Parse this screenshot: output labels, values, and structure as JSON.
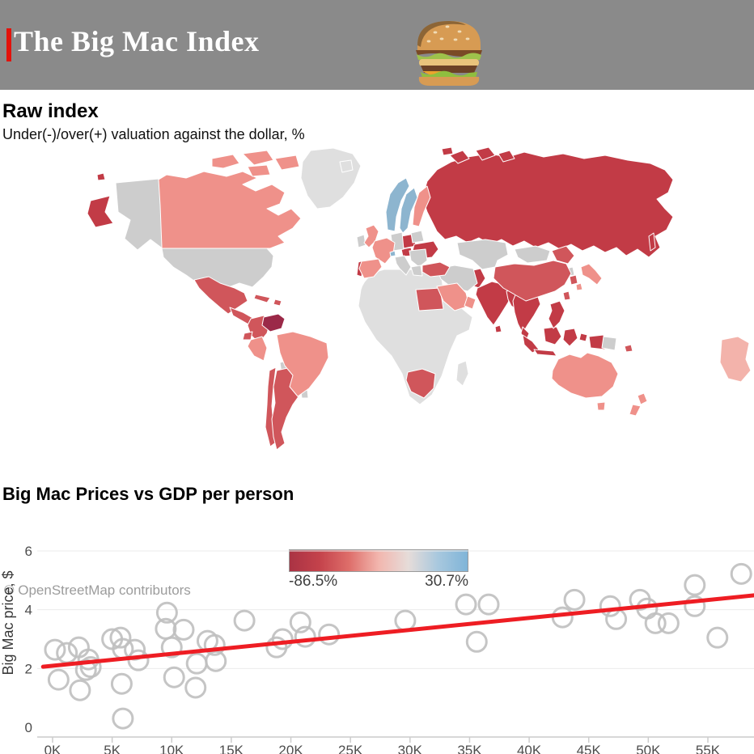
{
  "header": {
    "title": "The Big Mac Index",
    "background_color": "#8a8a8a",
    "accent_color": "#e3120b"
  },
  "map_section": {
    "heading": "Raw index",
    "subtitle": "Under(-)/over(+) valuation against the dollar, %",
    "attribution": "© OpenStreetMap contributors",
    "legend": {
      "min_label": "-86.5%",
      "max_label": "30.7%"
    }
  },
  "scatter_section": {
    "heading": "Big Mac Prices vs GDP per person",
    "ylabel": "Big Mac price, $",
    "y_ticks": [
      {
        "label": "0",
        "value": 0
      },
      {
        "label": "2",
        "value": 2
      },
      {
        "label": "4",
        "value": 4
      },
      {
        "label": "6",
        "value": 6
      }
    ],
    "x_ticks": [
      "0K",
      "5K",
      "10K",
      "15K",
      "20K",
      "25K",
      "30K",
      "35K",
      "40K",
      "45K",
      "50K",
      "55K"
    ]
  },
  "palette": {
    "map": {
      "dark_maroon": "#9b2948",
      "dark_red": "#c23b46",
      "red": "#d0565b",
      "salmon": "#ef918a",
      "light_salmon": "#f3b3ab",
      "blue": "#8db5cf",
      "gray": "#cdcdcd",
      "light_gray": "#dfdfdf"
    },
    "scatter": {
      "point_stroke": "#bfbfbf",
      "trend": "#ee1d23",
      "grid": "#ebebeb",
      "axis": "#cccccc",
      "tick_text": "#4d4d4d",
      "ylabel_text": "#383838"
    }
  },
  "chart_data": [
    {
      "type": "choropleth",
      "title": "Raw index",
      "subtitle": "Under(-)/over(+) valuation against the dollar, %",
      "attribution": "© OpenStreetMap contributors",
      "colorbar": {
        "min_label": "-86.5%",
        "max_label": "30.7%",
        "gradient": [
          "#aa3344",
          "#c4424b",
          "#de6e6a",
          "#f2b6ae",
          "#e6dcd9",
          "#a8c8de",
          "#7fb4d8"
        ]
      },
      "region_shades": {
        "darkest_red_most_undervalued": [
          "Venezuela"
        ],
        "dark_red_strongly_undervalued": [
          "Russia",
          "Ukraine",
          "Poland",
          "Portugal",
          "India",
          "Pakistan",
          "Indonesia",
          "Malaysia",
          "Philippines",
          "Vietnam",
          "Thailand",
          "Myanmar",
          "Sri Lanka"
        ],
        "red_undervalued": [
          "Mexico",
          "Colombia",
          "Ecuador",
          "Chile",
          "Argentina",
          "Turkey",
          "Egypt",
          "South Africa",
          "China",
          "South Korea",
          "Taiwan",
          "Cuba",
          "Central America"
        ],
        "salmon_mildly_undervalued": [
          "Canada",
          "United Kingdom",
          "France",
          "Spain",
          "Finland",
          "Saudi Arabia",
          "Oman",
          "Japan",
          "Australia",
          "New Zealand",
          "Brazil",
          "Peru"
        ],
        "blue_overvalued": [
          "Norway",
          "Sweden",
          "Switzerland"
        ],
        "gray_no_data": [
          "United States",
          "Alaska",
          "Greenland",
          "Iceland",
          "Africa (most)",
          "Kazakhstan",
          "Mongolia",
          "Iran",
          "Bolivia",
          "Paraguay",
          "Ireland",
          "Italy",
          "Germany",
          "Greece",
          "Madagascar"
        ]
      }
    },
    {
      "type": "scatter",
      "title": "Big Mac Prices vs GDP per person",
      "xlabel": "",
      "ylabel": "Big Mac price, $",
      "xlim": [
        -1,
        59
      ],
      "ylim": [
        0,
        6
      ],
      "x_tick_step_thousands": 5,
      "points": [
        [
          0.2,
          2.64
        ],
        [
          1.2,
          2.53
        ],
        [
          0.5,
          1.62
        ],
        [
          2.2,
          2.72
        ],
        [
          2.3,
          1.26
        ],
        [
          2.8,
          1.95
        ],
        [
          3.0,
          2.31
        ],
        [
          3.2,
          2.05
        ],
        [
          5.0,
          3.0
        ],
        [
          5.7,
          3.05
        ],
        [
          5.9,
          2.67
        ],
        [
          5.8,
          1.48
        ],
        [
          5.9,
          0.3
        ],
        [
          6.9,
          2.64
        ],
        [
          7.2,
          2.28
        ],
        [
          9.6,
          3.9
        ],
        [
          9.5,
          3.35
        ],
        [
          10.0,
          2.72
        ],
        [
          10.2,
          1.7
        ],
        [
          11.0,
          3.32
        ],
        [
          12.0,
          1.35
        ],
        [
          12.1,
          2.17
        ],
        [
          13.0,
          2.94
        ],
        [
          13.6,
          2.8
        ],
        [
          13.7,
          2.25
        ],
        [
          16.1,
          3.63
        ],
        [
          18.8,
          2.72
        ],
        [
          19.3,
          3.0
        ],
        [
          20.8,
          3.57
        ],
        [
          21.2,
          3.08
        ],
        [
          23.2,
          3.16
        ],
        [
          29.6,
          3.63
        ],
        [
          34.7,
          4.18
        ],
        [
          36.6,
          4.18
        ],
        [
          35.6,
          2.91
        ],
        [
          42.8,
          3.74
        ],
        [
          43.8,
          4.34
        ],
        [
          46.8,
          4.12
        ],
        [
          47.3,
          3.68
        ],
        [
          49.3,
          4.34
        ],
        [
          49.9,
          4.04
        ],
        [
          50.6,
          3.54
        ],
        [
          51.7,
          3.54
        ],
        [
          53.9,
          4.84
        ],
        [
          53.9,
          4.12
        ],
        [
          55.8,
          3.05
        ],
        [
          57.8,
          5.22
        ]
      ],
      "trend": {
        "x1": -0.8,
        "y1": 2.06,
        "x2": 58.9,
        "y2": 4.49
      }
    }
  ]
}
